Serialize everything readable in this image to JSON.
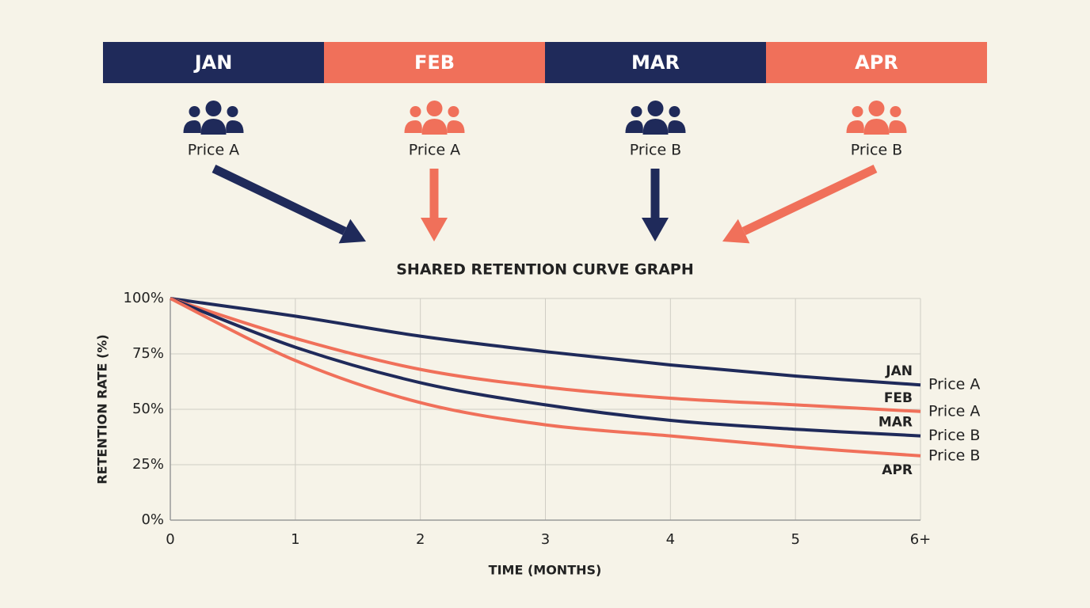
{
  "header": {
    "cohorts": [
      {
        "month": "JAN",
        "price": "Price A",
        "color": "#1f2a5a"
      },
      {
        "month": "FEB",
        "price": "Price A",
        "color": "#f0705a"
      },
      {
        "month": "MAR",
        "price": "Price B",
        "color": "#1f2a5a"
      },
      {
        "month": "APR",
        "price": "Price B",
        "color": "#f0705a"
      }
    ]
  },
  "chart_data": {
    "type": "line",
    "title": "SHARED RETENTION CURVE GRAPH",
    "x_label": "TIME (MONTHS)",
    "y_label": "RETENTION RATE (%)",
    "x": [
      0,
      1,
      2,
      3,
      4,
      5,
      6
    ],
    "series": [
      {
        "name": "JAN",
        "label": "Price A",
        "color": "#1f2a5a",
        "values": [
          100,
          92,
          83,
          76,
          70,
          65,
          61
        ]
      },
      {
        "name": "FEB",
        "label": "Price A",
        "color": "#f0705a",
        "values": [
          100,
          82,
          68,
          60,
          55,
          52,
          49
        ]
      },
      {
        "name": "MAR",
        "label": "Price B",
        "color": "#1f2a5a",
        "values": [
          100,
          78,
          62,
          52,
          45,
          41,
          38
        ]
      },
      {
        "name": "APR",
        "label": "Price B",
        "color": "#f0705a",
        "values": [
          100,
          72,
          53,
          43,
          38,
          33,
          29
        ]
      }
    ],
    "xlim": [
      0,
      6
    ],
    "xticks": [
      0,
      1,
      2,
      3,
      4,
      5,
      {
        "value": 6,
        "label": "6+"
      }
    ],
    "ylim": [
      0,
      100
    ],
    "yticks": [
      {
        "value": 0,
        "label": "0%"
      },
      {
        "value": 25,
        "label": "25%"
      },
      {
        "value": 50,
        "label": "50%"
      },
      {
        "value": 75,
        "label": "75%"
      },
      {
        "value": 100,
        "label": "100%"
      }
    ],
    "grid": true
  }
}
